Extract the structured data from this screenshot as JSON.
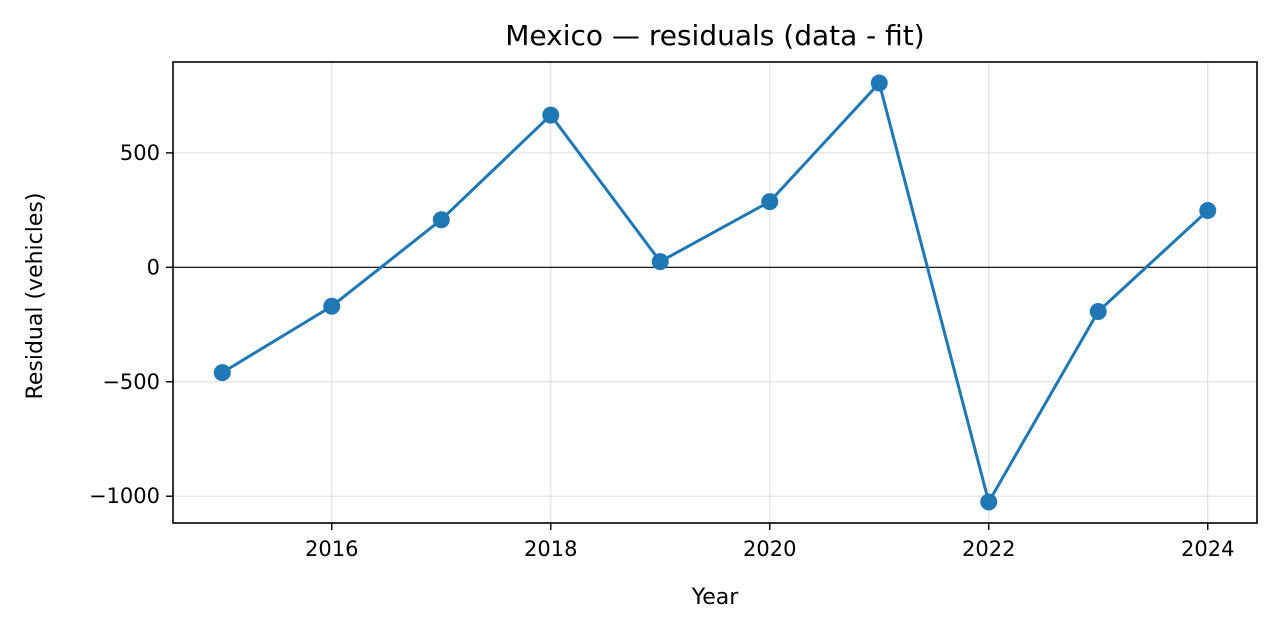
{
  "chart_data": {
    "type": "line",
    "title": "Mexico — residuals (data - fit)",
    "xlabel": "Year",
    "ylabel": "Residual (vehicles)",
    "x": [
      2015,
      2016,
      2017,
      2018,
      2019,
      2020,
      2021,
      2022,
      2023,
      2024
    ],
    "series": [
      {
        "values": [
          -460,
          -170,
          208,
          665,
          25,
          287,
          805,
          -1025,
          -193,
          248
        ],
        "color": "#1f77b4",
        "marker": "circle"
      }
    ],
    "xlim": [
      2014.55,
      2024.45
    ],
    "ylim": [
      -1117,
      897
    ],
    "xticks": [
      2016,
      2018,
      2020,
      2022,
      2024
    ],
    "xtick_labels": [
      "2016",
      "2018",
      "2020",
      "2022",
      "2024"
    ],
    "yticks": [
      500,
      0,
      -500,
      -1000
    ],
    "ytick_labels": [
      "500",
      "0",
      "−500",
      "−1000"
    ],
    "grid": true,
    "reference_line_y": 0
  }
}
